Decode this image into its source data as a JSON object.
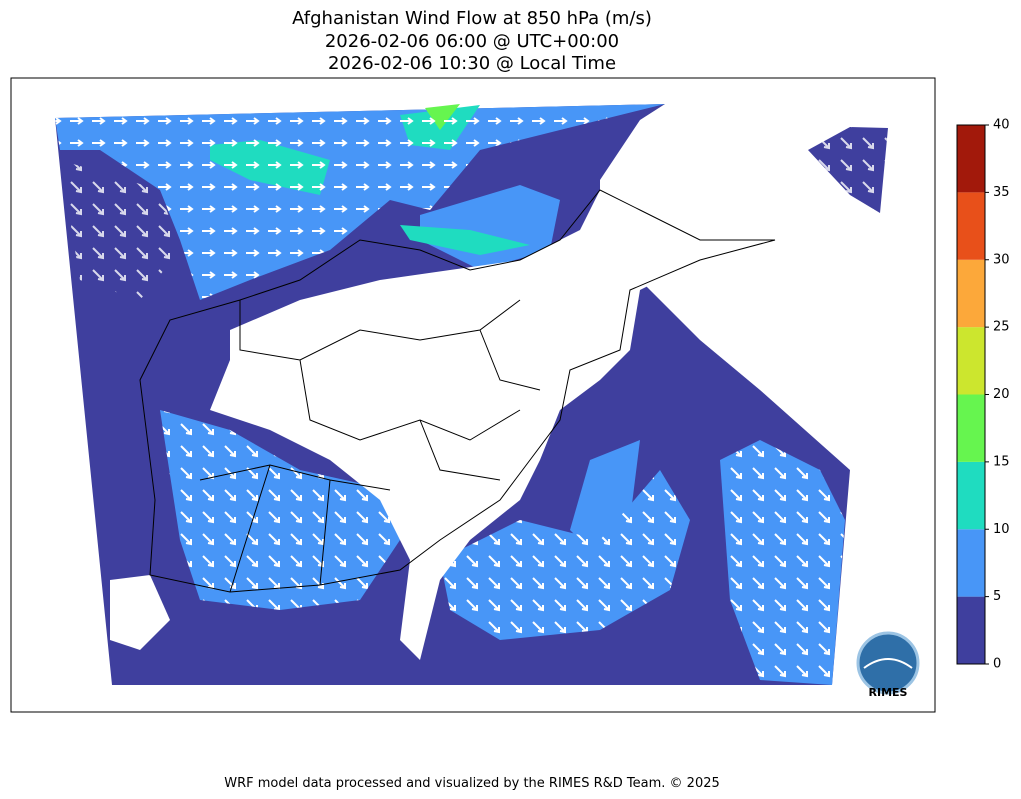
{
  "header": {
    "title": [
      "Afghanistan Wind Flow at 850 hPa (m/s)",
      "2026-02-06 06:00 @ UTC+00:00",
      "2026-02-06 10:30 @ Local Time"
    ]
  },
  "colorbar": {
    "ticks": [
      0,
      5,
      10,
      15,
      20,
      25,
      30,
      35,
      40
    ],
    "colors": [
      "#3f3f9e",
      "#4896f7",
      "#1fdcc0",
      "#66f54f",
      "#cce62e",
      "#fca83a",
      "#e8501a",
      "#a2190b"
    ]
  },
  "logo": {
    "text": "RIMES"
  },
  "footer": {
    "text": "WRF model data processed and visualized by the RIMES R&D Team. © 2025"
  }
}
